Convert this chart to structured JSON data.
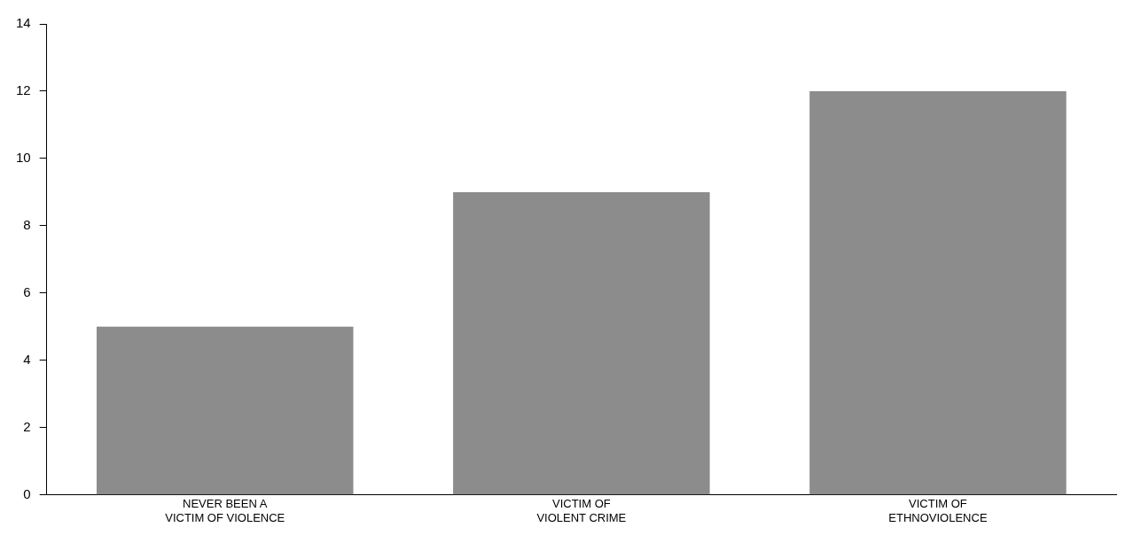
{
  "chart_data": {
    "type": "bar",
    "categories": [
      "NEVER BEEN A\nVICTIM OF VIOLENCE",
      "VICTIM OF\nVIOLENT CRIME",
      "VICTIM OF\nETHNOVIOLENCE"
    ],
    "values": [
      5,
      9,
      12
    ],
    "color": "#8c8c8c",
    "ylim": [
      0,
      14
    ],
    "yticks": [
      0,
      2,
      4,
      6,
      8,
      10,
      12,
      14
    ],
    "grid": false,
    "legend": false
  }
}
